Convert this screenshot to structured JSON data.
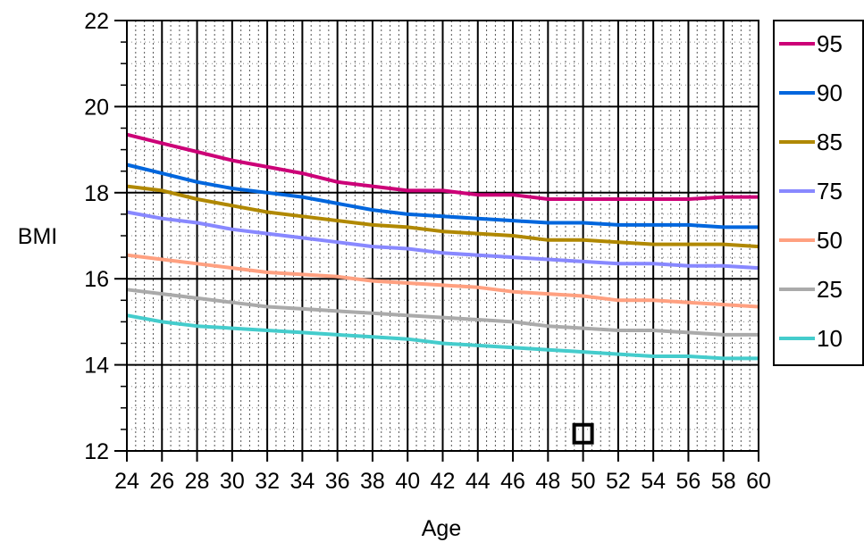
{
  "chart_data": {
    "type": "line",
    "title": "",
    "xlabel": "Age",
    "ylabel": "BMI",
    "xlim": [
      24,
      60
    ],
    "ylim": [
      12,
      22
    ],
    "x_ticks": [
      "24",
      "26",
      "28",
      "30",
      "32",
      "34",
      "36",
      "38",
      "40",
      "42",
      "44",
      "46",
      "48",
      "50",
      "52",
      "54",
      "56",
      "58",
      "60"
    ],
    "y_ticks": [
      "12",
      "14",
      "16",
      "18",
      "20",
      "22"
    ],
    "grid": true,
    "legend_position": "right",
    "series": [
      {
        "name": "95",
        "color": "#cc0077",
        "points": [
          [
            24,
            19.35
          ],
          [
            26,
            19.15
          ],
          [
            28,
            18.95
          ],
          [
            30,
            18.75
          ],
          [
            32,
            18.6
          ],
          [
            34,
            18.45
          ],
          [
            36,
            18.25
          ],
          [
            38,
            18.15
          ],
          [
            40,
            18.05
          ],
          [
            42,
            18.05
          ],
          [
            44,
            17.95
          ],
          [
            46,
            17.95
          ],
          [
            48,
            17.85
          ],
          [
            50,
            17.85
          ],
          [
            52,
            17.85
          ],
          [
            54,
            17.85
          ],
          [
            56,
            17.85
          ],
          [
            58,
            17.9
          ],
          [
            60,
            17.9
          ]
        ]
      },
      {
        "name": "90",
        "color": "#0066dd",
        "points": [
          [
            24,
            18.65
          ],
          [
            26,
            18.45
          ],
          [
            28,
            18.25
          ],
          [
            30,
            18.1
          ],
          [
            32,
            18.0
          ],
          [
            34,
            17.9
          ],
          [
            36,
            17.75
          ],
          [
            38,
            17.6
          ],
          [
            40,
            17.5
          ],
          [
            42,
            17.45
          ],
          [
            44,
            17.4
          ],
          [
            46,
            17.35
          ],
          [
            48,
            17.3
          ],
          [
            50,
            17.3
          ],
          [
            52,
            17.25
          ],
          [
            54,
            17.25
          ],
          [
            56,
            17.25
          ],
          [
            58,
            17.2
          ],
          [
            60,
            17.2
          ]
        ]
      },
      {
        "name": "85",
        "color": "#b08800",
        "points": [
          [
            24,
            18.15
          ],
          [
            26,
            18.05
          ],
          [
            28,
            17.85
          ],
          [
            30,
            17.7
          ],
          [
            32,
            17.55
          ],
          [
            34,
            17.45
          ],
          [
            36,
            17.35
          ],
          [
            38,
            17.25
          ],
          [
            40,
            17.2
          ],
          [
            42,
            17.1
          ],
          [
            44,
            17.05
          ],
          [
            46,
            17.0
          ],
          [
            48,
            16.9
          ],
          [
            50,
            16.9
          ],
          [
            52,
            16.85
          ],
          [
            54,
            16.8
          ],
          [
            56,
            16.8
          ],
          [
            58,
            16.8
          ],
          [
            60,
            16.75
          ]
        ]
      },
      {
        "name": "75",
        "color": "#8888ff",
        "points": [
          [
            24,
            17.55
          ],
          [
            26,
            17.4
          ],
          [
            28,
            17.3
          ],
          [
            30,
            17.15
          ],
          [
            32,
            17.05
          ],
          [
            34,
            16.95
          ],
          [
            36,
            16.85
          ],
          [
            38,
            16.75
          ],
          [
            40,
            16.7
          ],
          [
            42,
            16.6
          ],
          [
            44,
            16.55
          ],
          [
            46,
            16.5
          ],
          [
            48,
            16.45
          ],
          [
            50,
            16.4
          ],
          [
            52,
            16.35
          ],
          [
            54,
            16.35
          ],
          [
            56,
            16.3
          ],
          [
            58,
            16.3
          ],
          [
            60,
            16.25
          ]
        ]
      },
      {
        "name": "50",
        "color": "#ffa080",
        "points": [
          [
            24,
            16.55
          ],
          [
            26,
            16.45
          ],
          [
            28,
            16.35
          ],
          [
            30,
            16.25
          ],
          [
            32,
            16.15
          ],
          [
            34,
            16.1
          ],
          [
            36,
            16.05
          ],
          [
            38,
            15.95
          ],
          [
            40,
            15.9
          ],
          [
            42,
            15.85
          ],
          [
            44,
            15.8
          ],
          [
            46,
            15.7
          ],
          [
            48,
            15.65
          ],
          [
            50,
            15.6
          ],
          [
            52,
            15.5
          ],
          [
            54,
            15.5
          ],
          [
            56,
            15.45
          ],
          [
            58,
            15.4
          ],
          [
            60,
            15.35
          ]
        ]
      },
      {
        "name": "25",
        "color": "#aaaaaa",
        "points": [
          [
            24,
            15.75
          ],
          [
            26,
            15.65
          ],
          [
            28,
            15.55
          ],
          [
            30,
            15.45
          ],
          [
            32,
            15.35
          ],
          [
            34,
            15.3
          ],
          [
            36,
            15.25
          ],
          [
            38,
            15.2
          ],
          [
            40,
            15.15
          ],
          [
            42,
            15.1
          ],
          [
            44,
            15.05
          ],
          [
            46,
            15.0
          ],
          [
            48,
            14.9
          ],
          [
            50,
            14.85
          ],
          [
            52,
            14.8
          ],
          [
            54,
            14.8
          ],
          [
            56,
            14.75
          ],
          [
            58,
            14.7
          ],
          [
            60,
            14.7
          ]
        ]
      },
      {
        "name": "10",
        "color": "#44cccc",
        "points": [
          [
            24,
            15.15
          ],
          [
            26,
            15.0
          ],
          [
            28,
            14.9
          ],
          [
            30,
            14.85
          ],
          [
            32,
            14.8
          ],
          [
            34,
            14.75
          ],
          [
            36,
            14.7
          ],
          [
            38,
            14.65
          ],
          [
            40,
            14.6
          ],
          [
            42,
            14.5
          ],
          [
            44,
            14.45
          ],
          [
            46,
            14.4
          ],
          [
            48,
            14.35
          ],
          [
            50,
            14.3
          ],
          [
            52,
            14.25
          ],
          [
            54,
            14.2
          ],
          [
            56,
            14.2
          ],
          [
            58,
            14.15
          ],
          [
            60,
            14.15
          ]
        ]
      }
    ],
    "marker": {
      "x": 50,
      "y": 12.4,
      "shape": "hollow-square",
      "color": "#000000"
    }
  }
}
